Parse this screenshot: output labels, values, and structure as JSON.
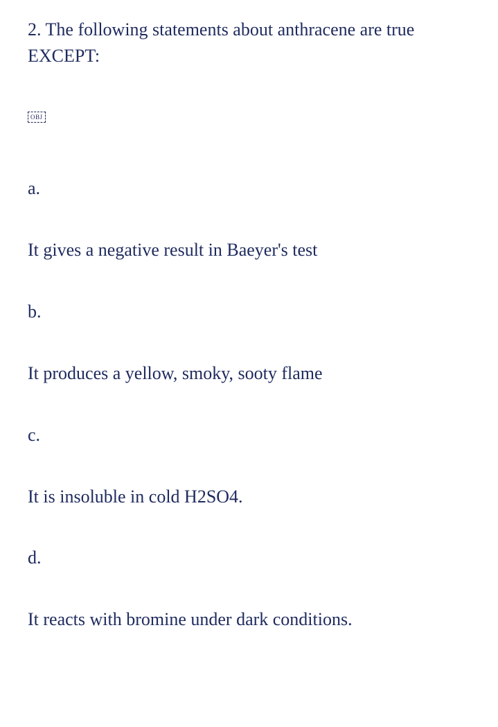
{
  "question": {
    "number": "2.",
    "stem": "The following statements about anthracene are true EXCEPT:",
    "obj_marker": "OBJ",
    "options": [
      {
        "letter": "a.",
        "text": "It gives a negative result in Baeyer's test"
      },
      {
        "letter": "b.",
        "text": "It produces a yellow, smoky, sooty flame"
      },
      {
        "letter": "c.",
        "text": "It is insoluble in cold H2SO4."
      },
      {
        "letter": "d.",
        "text": "It reacts with bromine under dark conditions."
      }
    ]
  },
  "styling": {
    "text_color": "#1e2a5e",
    "background_color": "#ffffff",
    "font_family": "Georgia, serif",
    "base_font_size": 26,
    "obj_font_size": 9
  }
}
